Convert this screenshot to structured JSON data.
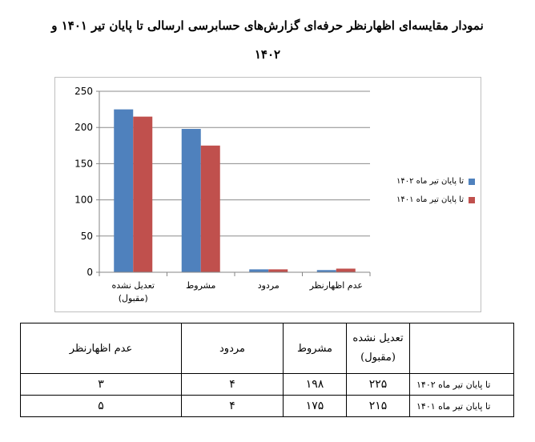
{
  "title_line1": "نمودار مقایسه‌ای اظهارنظر حرفه‌ای گزارش‌های حسابرسی ارسالی تا پایان تیر ۱۴۰۱ و",
  "title_line2": "۱۴۰۲",
  "colors": {
    "series_1402": "#4F81BD",
    "series_1401": "#C0504D",
    "grid": "#8c8c8c"
  },
  "chart_data": {
    "type": "bar",
    "categories": [
      "تعدیل نشده (مقبول)",
      "مشروط",
      "مردود",
      "عدم اظهارنظر"
    ],
    "category_lines": [
      [
        "تعدیل نشده",
        "(مقبول)"
      ],
      [
        "مشروط"
      ],
      [
        "مردود"
      ],
      [
        "عدم اظهارنظر"
      ]
    ],
    "series": [
      {
        "name": "تا پایان تیر ماه ۱۴۰۲",
        "values": [
          225,
          198,
          4,
          3
        ]
      },
      {
        "name": "تا پایان تیر ماه ۱۴۰۱",
        "values": [
          215,
          175,
          4,
          5
        ]
      }
    ],
    "ylim": [
      0,
      250
    ],
    "yticks": [
      0,
      50,
      100,
      150,
      200,
      250
    ],
    "grid": true,
    "legend_position": "right"
  },
  "table": {
    "headers": [
      "عدم اظهارنظر",
      "مردود",
      "مشروط",
      "تعدیل نشده",
      "(مقبول)"
    ],
    "rows": [
      {
        "label": "تا پایان تیر ماه ۱۴۰۲",
        "none": "۳",
        "rejected": "۴",
        "qualified": "۱۹۸",
        "unmodified": "۲۲۵"
      },
      {
        "label": "تا پایان تیر ماه ۱۴۰۱",
        "none": "۵",
        "rejected": "۴",
        "qualified": "۱۷۵",
        "unmodified": "۲۱۵"
      }
    ]
  }
}
